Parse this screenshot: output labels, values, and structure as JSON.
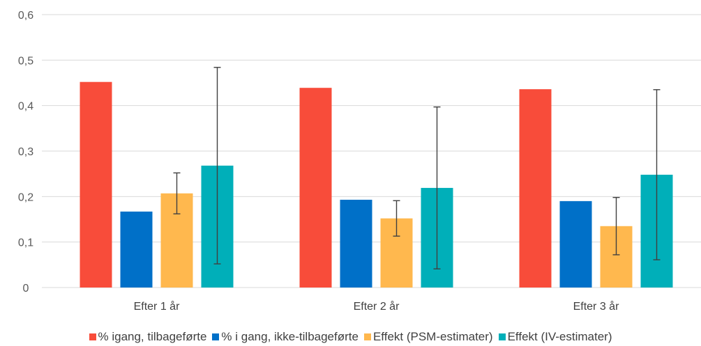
{
  "chart_data": {
    "type": "bar",
    "title": "",
    "xlabel": "",
    "ylabel": "",
    "ylim": [
      0,
      0.6
    ],
    "yticks": [
      "0",
      "0,1",
      "0,2",
      "0,3",
      "0,4",
      "0,5",
      "0,6"
    ],
    "categories": [
      "Efter 1 år",
      "Efter 2 år",
      "Efter 3 år"
    ],
    "grid": true,
    "legend_position": "bottom",
    "series": [
      {
        "name": "% igang, tilbageførte",
        "color": "#F84C3A",
        "values": [
          0.452,
          0.439,
          0.436
        ]
      },
      {
        "name": "% i gang, ikke-tilbageførte",
        "color": "#0070C8",
        "values": [
          0.167,
          0.193,
          0.19
        ]
      },
      {
        "name": "Effekt (PSM-estimater)",
        "color": "#FFB84E",
        "values": [
          0.207,
          0.152,
          0.135
        ],
        "error_bars": [
          [
            0.162,
            0.252
          ],
          [
            0.113,
            0.191
          ],
          [
            0.072,
            0.198
          ]
        ]
      },
      {
        "name": "Effekt (IV-estimater)",
        "color": "#00AFB9",
        "values": [
          0.268,
          0.219,
          0.248
        ],
        "error_bars": [
          [
            0.052,
            0.484
          ],
          [
            0.041,
            0.397
          ],
          [
            0.061,
            0.435
          ]
        ]
      }
    ]
  }
}
